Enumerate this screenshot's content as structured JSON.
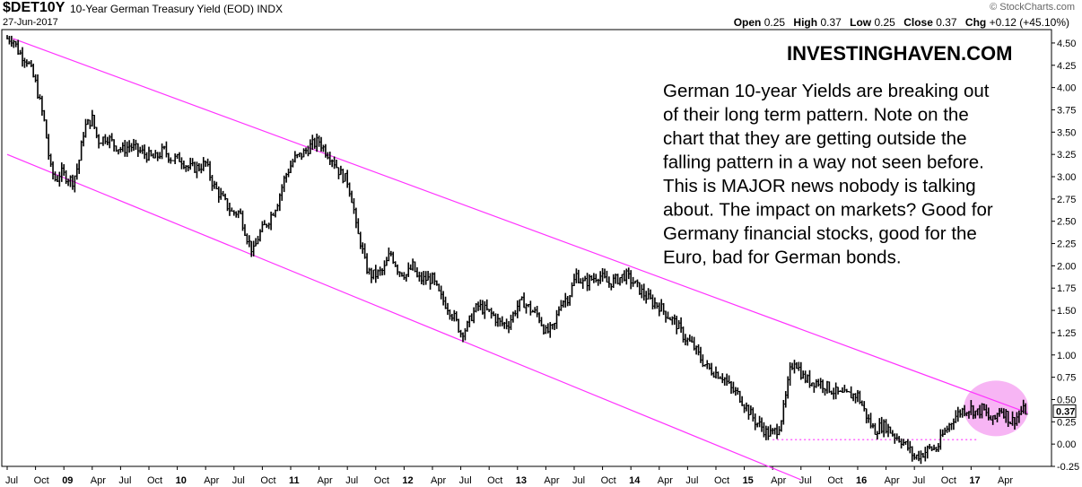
{
  "header": {
    "symbol": "$DET10Y",
    "description": "10-Year German Treasury Yield (EOD)",
    "exchange": "INDX",
    "date": "27-Jun-2017",
    "brand": "© StockCharts.com",
    "ohlc": {
      "open_label": "Open",
      "open": "0.25",
      "high_label": "High",
      "high": "0.37",
      "low_label": "Low",
      "low": "0.25",
      "close_label": "Close",
      "close": "0.37",
      "chg_label": "Chg",
      "chg": "+0.12 (+45.10%)"
    }
  },
  "watermark": "INVESTINGHAVEN.COM",
  "annotation_lines": [
    "German 10-year Yields are breaking out",
    "of their long term pattern. Note on the",
    "chart that they are getting outside the",
    "falling pattern in a way not seen before.",
    "This is MAJOR news nobody is talking",
    "about. The impact on markets? Good for",
    "Germany financial stocks, good for the",
    "Euro, bad for German bonds."
  ],
  "colors": {
    "channel": "#ff33ff",
    "highlight": "#f6a8f2",
    "price": "#000000",
    "current_box": "#ffffff"
  },
  "chart_data": {
    "type": "line",
    "title": "$DET10Y 10-Year German Treasury Yield (EOD)",
    "ylabel": "",
    "xlabel": "",
    "ylim": [
      -0.25,
      4.6
    ],
    "xlim": [
      2008.5,
      2017.63
    ],
    "y_ticks": [
      "4.50",
      "4.25",
      "4.00",
      "3.75",
      "3.50",
      "3.25",
      "3.00",
      "2.75",
      "2.50",
      "2.25",
      "2.00",
      "1.75",
      "1.50",
      "1.25",
      "1.00",
      "0.75",
      "0.50",
      "0.25",
      "0.00",
      "-0.25"
    ],
    "current_value_label": "0.37",
    "current_value": 0.37,
    "x_ticks": [
      {
        "t": 2008.5,
        "label": "Jul",
        "bold": false
      },
      {
        "t": 2008.75,
        "label": "Oct",
        "bold": false
      },
      {
        "t": 2009.0,
        "label": "09",
        "bold": true
      },
      {
        "t": 2009.25,
        "label": "Apr",
        "bold": false
      },
      {
        "t": 2009.5,
        "label": "Jul",
        "bold": false
      },
      {
        "t": 2009.75,
        "label": "Oct",
        "bold": false
      },
      {
        "t": 2010.0,
        "label": "10",
        "bold": true
      },
      {
        "t": 2010.25,
        "label": "Apr",
        "bold": false
      },
      {
        "t": 2010.5,
        "label": "Jul",
        "bold": false
      },
      {
        "t": 2010.75,
        "label": "Oct",
        "bold": false
      },
      {
        "t": 2011.0,
        "label": "11",
        "bold": true
      },
      {
        "t": 2011.25,
        "label": "Apr",
        "bold": false
      },
      {
        "t": 2011.5,
        "label": "Jul",
        "bold": false
      },
      {
        "t": 2011.75,
        "label": "Oct",
        "bold": false
      },
      {
        "t": 2012.0,
        "label": "12",
        "bold": true
      },
      {
        "t": 2012.25,
        "label": "Apr",
        "bold": false
      },
      {
        "t": 2012.5,
        "label": "Jul",
        "bold": false
      },
      {
        "t": 2012.75,
        "label": "Oct",
        "bold": false
      },
      {
        "t": 2013.0,
        "label": "13",
        "bold": true
      },
      {
        "t": 2013.25,
        "label": "Apr",
        "bold": false
      },
      {
        "t": 2013.5,
        "label": "Jul",
        "bold": false
      },
      {
        "t": 2013.75,
        "label": "Oct",
        "bold": false
      },
      {
        "t": 2014.0,
        "label": "14",
        "bold": true
      },
      {
        "t": 2014.25,
        "label": "Apr",
        "bold": false
      },
      {
        "t": 2014.5,
        "label": "Jul",
        "bold": false
      },
      {
        "t": 2014.75,
        "label": "Oct",
        "bold": false
      },
      {
        "t": 2015.0,
        "label": "15",
        "bold": true
      },
      {
        "t": 2015.25,
        "label": "Apr",
        "bold": false
      },
      {
        "t": 2015.5,
        "label": "Jul",
        "bold": false
      },
      {
        "t": 2015.75,
        "label": "Oct",
        "bold": false
      },
      {
        "t": 2016.0,
        "label": "16",
        "bold": true
      },
      {
        "t": 2016.25,
        "label": "Apr",
        "bold": false
      },
      {
        "t": 2016.5,
        "label": "Jul",
        "bold": false
      },
      {
        "t": 2016.75,
        "label": "Oct",
        "bold": false
      },
      {
        "t": 2017.0,
        "label": "17",
        "bold": true
      },
      {
        "t": 2017.25,
        "label": "Apr",
        "bold": false
      }
    ],
    "series": [
      {
        "name": "10-Year German Treasury Yield",
        "x": [
          2008.5,
          2008.55,
          2008.6,
          2008.68,
          2008.75,
          2008.83,
          2008.88,
          2008.93,
          2008.97,
          2009.02,
          2009.08,
          2009.13,
          2009.18,
          2009.25,
          2009.3,
          2009.38,
          2009.45,
          2009.52,
          2009.58,
          2009.65,
          2009.72,
          2009.8,
          2009.88,
          2009.95,
          2010.03,
          2010.1,
          2010.18,
          2010.25,
          2010.32,
          2010.4,
          2010.48,
          2010.55,
          2010.62,
          2010.67,
          2010.72,
          2010.8,
          2010.88,
          2010.95,
          2011.03,
          2011.1,
          2011.18,
          2011.25,
          2011.3,
          2011.37,
          2011.43,
          2011.5,
          2011.55,
          2011.58,
          2011.62,
          2011.66,
          2011.7,
          2011.75,
          2011.82,
          2011.88,
          2011.95,
          2012.02,
          2012.08,
          2012.12,
          2012.18,
          2012.25,
          2012.32,
          2012.38,
          2012.45,
          2012.5,
          2012.55,
          2012.6,
          2012.65,
          2012.72,
          2012.78,
          2012.85,
          2012.92,
          2013.0,
          2013.05,
          2013.12,
          2013.18,
          2013.25,
          2013.32,
          2013.38,
          2013.45,
          2013.52,
          2013.58,
          2013.65,
          2013.72,
          2013.8,
          2013.88,
          2013.95,
          2014.03,
          2014.1,
          2014.18,
          2014.25,
          2014.32,
          2014.4,
          2014.47,
          2014.55,
          2014.62,
          2014.68,
          2014.75,
          2014.82,
          2014.88,
          2014.95,
          2015.0,
          2015.05,
          2015.1,
          2015.15,
          2015.2,
          2015.25,
          2015.3,
          2015.34,
          2015.37,
          2015.4,
          2015.44,
          2015.48,
          2015.52,
          2015.58,
          2015.65,
          2015.72,
          2015.78,
          2015.85,
          2015.92,
          2016.0,
          2016.05,
          2016.1,
          2016.15,
          2016.2,
          2016.25,
          2016.32,
          2016.38,
          2016.45,
          2016.5,
          2016.53,
          2016.58,
          2016.63,
          2016.7,
          2016.75,
          2016.8,
          2016.85,
          2016.92,
          2017.0,
          2017.05,
          2017.1,
          2017.15,
          2017.2,
          2017.25,
          2017.3,
          2017.35,
          2017.4,
          2017.45,
          2017.49
        ],
        "y": [
          4.55,
          4.55,
          4.4,
          4.3,
          4.05,
          3.6,
          3.1,
          2.95,
          3.05,
          3.0,
          2.95,
          3.15,
          3.55,
          3.65,
          3.4,
          3.45,
          3.35,
          3.3,
          3.35,
          3.3,
          3.25,
          3.2,
          3.3,
          3.2,
          3.2,
          3.1,
          3.1,
          3.15,
          2.9,
          2.75,
          2.6,
          2.6,
          2.3,
          2.15,
          2.35,
          2.5,
          2.7,
          3.0,
          3.2,
          3.25,
          3.35,
          3.4,
          3.3,
          3.2,
          3.05,
          2.95,
          2.7,
          2.4,
          2.25,
          2.0,
          1.9,
          1.9,
          1.95,
          2.15,
          1.95,
          1.9,
          2.0,
          1.85,
          1.85,
          1.85,
          1.65,
          1.55,
          1.4,
          1.25,
          1.3,
          1.45,
          1.55,
          1.5,
          1.45,
          1.35,
          1.35,
          1.55,
          1.6,
          1.5,
          1.45,
          1.25,
          1.3,
          1.6,
          1.65,
          1.9,
          1.8,
          1.85,
          1.9,
          1.8,
          1.85,
          1.9,
          1.8,
          1.7,
          1.6,
          1.55,
          1.45,
          1.35,
          1.2,
          1.1,
          0.95,
          0.85,
          0.8,
          0.75,
          0.62,
          0.55,
          0.45,
          0.35,
          0.25,
          0.2,
          0.12,
          0.12,
          0.18,
          0.35,
          0.55,
          0.8,
          0.95,
          0.85,
          0.75,
          0.7,
          0.7,
          0.65,
          0.6,
          0.55,
          0.55,
          0.55,
          0.4,
          0.25,
          0.15,
          0.2,
          0.2,
          0.1,
          0.05,
          -0.05,
          -0.15,
          -0.13,
          -0.1,
          -0.05,
          -0.05,
          0.1,
          0.2,
          0.3,
          0.38,
          0.4,
          0.35,
          0.4,
          0.3,
          0.25,
          0.4,
          0.35,
          0.25,
          0.3,
          0.38,
          0.37
        ]
      }
    ],
    "channel_lines": [
      {
        "name": "upper channel",
        "points": [
          [
            2008.55,
            4.55
          ],
          [
            2017.5,
            0.35
          ]
        ]
      },
      {
        "name": "lower channel",
        "points": [
          [
            2008.5,
            3.25
          ],
          [
            2015.5,
            -0.4
          ]
        ]
      }
    ],
    "support_line": {
      "name": "dotted support",
      "y": 0.05,
      "x_start": 2015.25,
      "x_end": 2017.05
    },
    "highlight_circle": {
      "name": "breakout highlight",
      "x": 2017.22,
      "y": 0.4
    }
  }
}
